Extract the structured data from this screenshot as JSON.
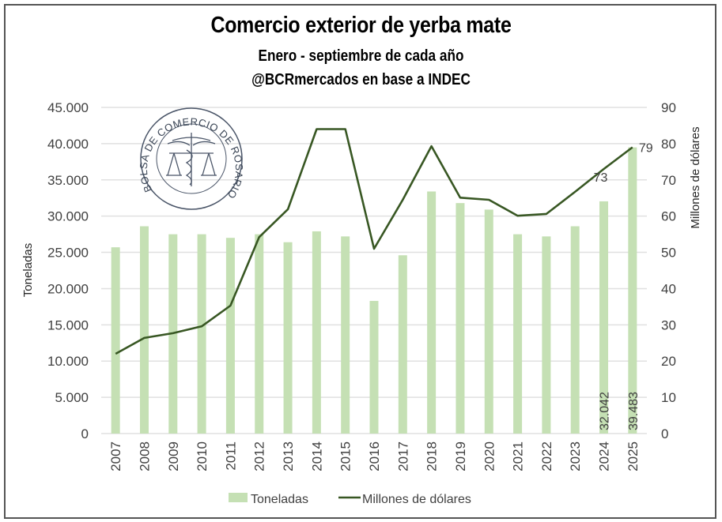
{
  "header": {
    "title": "Comercio exterior de yerba mate",
    "subtitle": "Enero - septiembre de cada año",
    "source": "@BCRmercados en base a INDEC"
  },
  "logo": {
    "text": "BOLSA DE COMERCIO DE ROSARIO"
  },
  "colors": {
    "bars": "#c5e0b4",
    "line": "#385723",
    "grid": "#e0e0e0",
    "frame": "#555555"
  },
  "chart_data": {
    "type": "bar",
    "title": "Comercio exterior de yerba mate",
    "subtitle": "Enero - septiembre de cada año",
    "categories": [
      "2007",
      "2008",
      "2009",
      "2010",
      "2011",
      "2012",
      "2013",
      "2014",
      "2015",
      "2016",
      "2017",
      "2018",
      "2019",
      "2020",
      "2021",
      "2022",
      "2023",
      "2024",
      "2025"
    ],
    "series": [
      {
        "name": "Toneladas",
        "type": "bar",
        "axis": "left",
        "values": [
          25700,
          28600,
          27500,
          27500,
          27000,
          27500,
          26400,
          27900,
          27200,
          18300,
          24600,
          33400,
          31800,
          30900,
          27500,
          27200,
          28600,
          32042,
          39483
        ],
        "data_labels": {
          "2024": "32.042",
          "2025": "39.483"
        }
      },
      {
        "name": "Millones de dólares",
        "type": "line",
        "axis": "right",
        "values": [
          22,
          26.4,
          27.7,
          29.6,
          35.3,
          54.2,
          61.9,
          84,
          84,
          51,
          64.5,
          79.3,
          65.1,
          64.5,
          60.1,
          60.6,
          66.7,
          73,
          79
        ],
        "data_labels": {
          "2024": "73",
          "2025": "79"
        }
      }
    ],
    "ylabel": "Toneladas",
    "y2label": "Millones de dólares",
    "xlabel": "",
    "ylim": [
      0,
      45000
    ],
    "y2lim": [
      0,
      90
    ],
    "yticks": [
      "0",
      "5.000",
      "10.000",
      "15.000",
      "20.000",
      "25.000",
      "30.000",
      "35.000",
      "40.000",
      "45.000"
    ],
    "y2ticks": [
      "0",
      "10",
      "20",
      "30",
      "40",
      "50",
      "60",
      "70",
      "80",
      "90"
    ],
    "grid": true,
    "legend_position": "bottom",
    "legend": [
      "Toneladas",
      "Millones de dólares"
    ]
  }
}
